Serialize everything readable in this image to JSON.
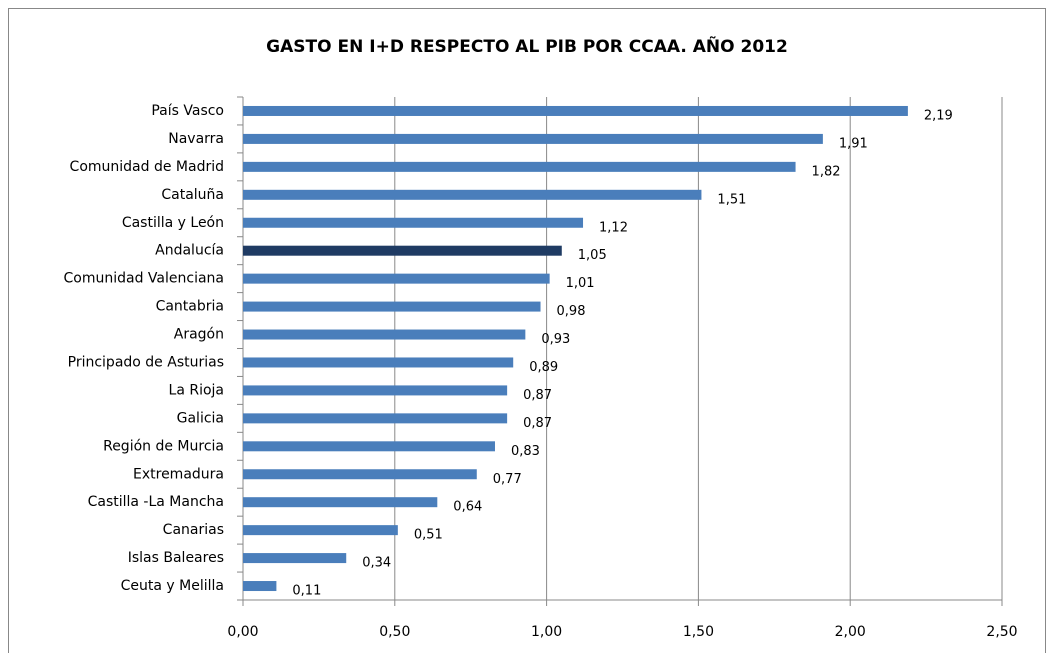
{
  "chart_data": {
    "type": "hbar",
    "title": "GASTO EN I+D RESPECTO AL PIB POR CCAA. AÑO 2012",
    "categories": [
      "País Vasco",
      "Navarra",
      "Comunidad de Madrid",
      "Cataluña",
      "Castilla y León",
      "Andalucía",
      "Comunidad Valenciana",
      "Cantabria",
      "Aragón",
      "Principado de Asturias",
      "La Rioja",
      "Galicia",
      "Región de Murcia",
      "Extremadura",
      "Castilla -La Mancha",
      "Canarias",
      "Islas Baleares",
      "Ceuta y Melilla"
    ],
    "values": [
      2.19,
      1.91,
      1.82,
      1.51,
      1.12,
      1.05,
      1.01,
      0.98,
      0.93,
      0.89,
      0.87,
      0.87,
      0.83,
      0.77,
      0.64,
      0.51,
      0.34,
      0.11
    ],
    "value_labels": [
      "2,19",
      "1,91",
      "1,82",
      "1,51",
      "1,12",
      "1,05",
      "1,01",
      "0,98",
      "0,93",
      "0,89",
      "0,87",
      "0,87",
      "0,83",
      "0,77",
      "0,64",
      "0,51",
      "0,34",
      "0,11"
    ],
    "colors": [
      "#4a7ebb",
      "#4a7ebb",
      "#4a7ebb",
      "#4a7ebb",
      "#4a7ebb",
      "#1f3b63",
      "#4a7ebb",
      "#4a7ebb",
      "#4a7ebb",
      "#4a7ebb",
      "#4a7ebb",
      "#4a7ebb",
      "#4a7ebb",
      "#4a7ebb",
      "#4a7ebb",
      "#4a7ebb",
      "#4a7ebb",
      "#4a7ebb"
    ],
    "xlim": [
      0,
      2.5
    ],
    "xticks": [
      {
        "value": 0,
        "label": "0,00"
      },
      {
        "value": 0.5,
        "label": "0,50"
      },
      {
        "value": 1,
        "label": "1,00"
      },
      {
        "value": 1.5,
        "label": "1,50"
      },
      {
        "value": 2,
        "label": "2,00"
      },
      {
        "value": 2.5,
        "label": "2,50"
      }
    ],
    "grid": true
  }
}
